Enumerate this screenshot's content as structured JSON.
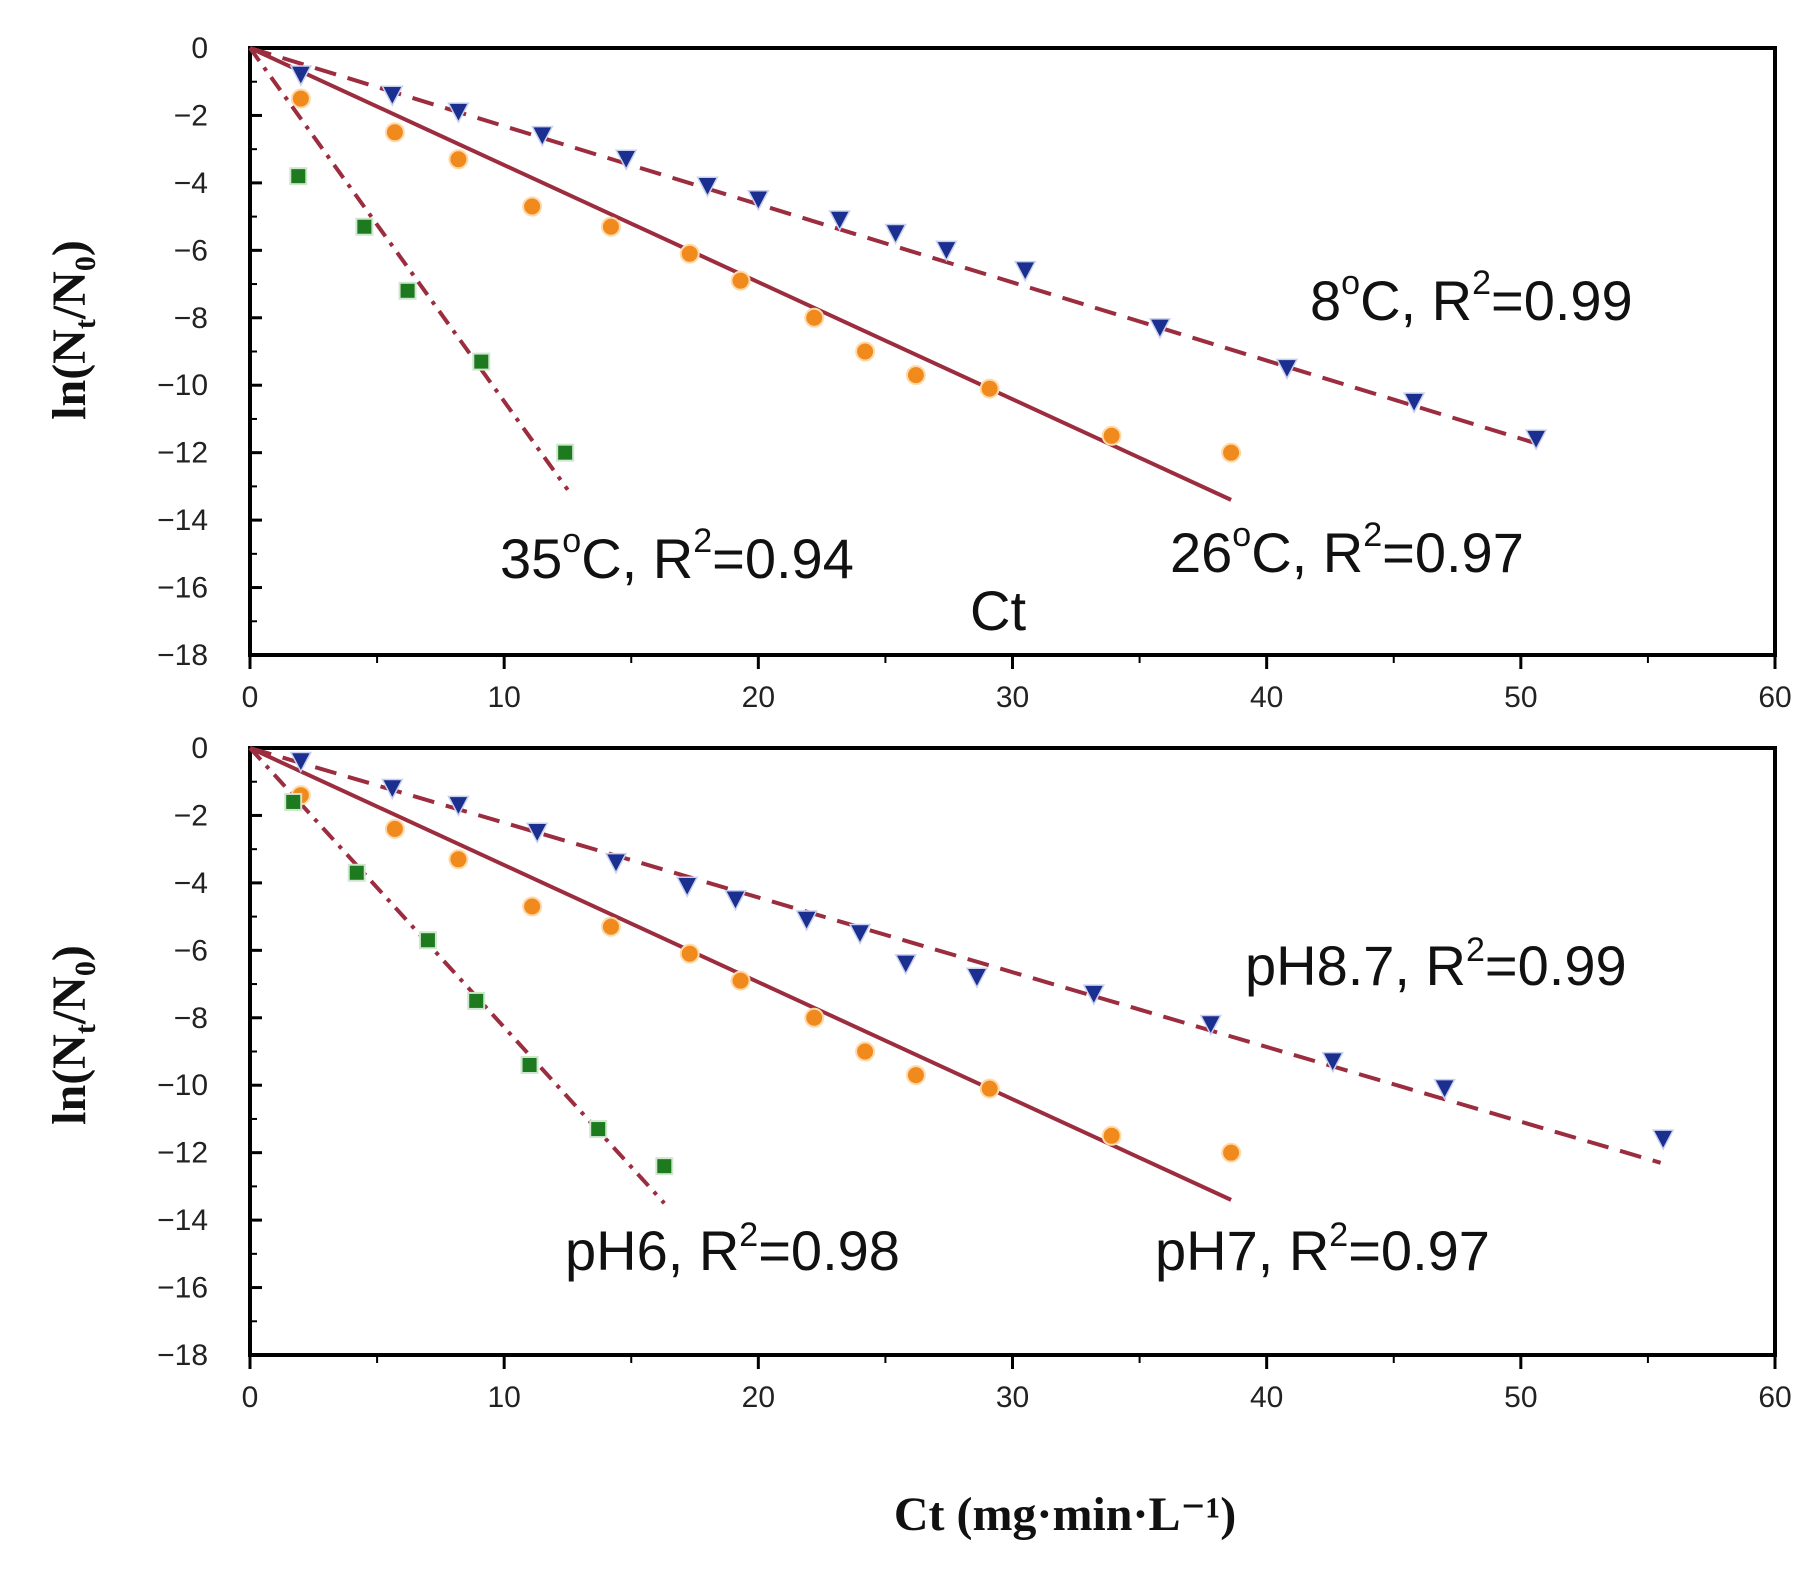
{
  "figure": {
    "ylabel_main": "ln(N",
    "ylabel_sub_t": "t",
    "ylabel_mid": "/N",
    "ylabel_sub_0": "0",
    "ylabel_close": ")",
    "xlabel": "Ct (mg·min·L⁻¹)",
    "stray_label": "Ct"
  },
  "colors": {
    "axis": "#000000",
    "line": "#9b2d3f",
    "triangle": "#1a2f8f",
    "circle": "#f08a1c",
    "square": "#1e7a1e"
  },
  "chart_data": [
    {
      "type": "scatter",
      "panel": "top",
      "xlim": [
        0,
        60
      ],
      "ylim": [
        -18,
        0
      ],
      "xticks": [
        0,
        10,
        20,
        30,
        40,
        50,
        60
      ],
      "yticks": [
        0,
        -2,
        -4,
        -6,
        -8,
        -10,
        -12,
        -14,
        -16,
        -18
      ],
      "series": [
        {
          "name": "8°C",
          "marker": "triangle",
          "fit_style": "dashed",
          "fit": [
            [
              0,
              0
            ],
            [
              50.5,
              -11.7
            ]
          ],
          "x": [
            2,
            5.6,
            8.2,
            11.5,
            14.8,
            18,
            20,
            23.2,
            25.4,
            27.4,
            30.5,
            35.8,
            40.8,
            45.8,
            50.6
          ],
          "y": [
            -0.8,
            -1.4,
            -1.9,
            -2.6,
            -3.3,
            -4.1,
            -4.5,
            -5.1,
            -5.5,
            -6.0,
            -6.6,
            -8.3,
            -9.5,
            -10.5,
            -11.6
          ]
        },
        {
          "name": "26°C",
          "marker": "circle",
          "fit_style": "solid",
          "fit": [
            [
              0,
              0
            ],
            [
              38.6,
              -13.4
            ]
          ],
          "x": [
            2,
            5.7,
            8.2,
            11.1,
            14.2,
            17.3,
            19.3,
            22.2,
            24.2,
            26.2,
            29.1,
            33.9,
            38.6
          ],
          "y": [
            -1.5,
            -2.5,
            -3.3,
            -4.7,
            -5.3,
            -6.1,
            -6.9,
            -8.0,
            -9.0,
            -9.7,
            -10.1,
            -11.5,
            -12.0
          ]
        },
        {
          "name": "35°C",
          "marker": "square",
          "fit_style": "dashdot",
          "fit": [
            [
              0,
              0
            ],
            [
              12.5,
              -13.1
            ]
          ],
          "x": [
            1.9,
            4.5,
            6.2,
            9.1,
            12.4
          ],
          "y": [
            -3.8,
            -5.3,
            -7.2,
            -9.3,
            -12.0
          ]
        }
      ],
      "annotations": [
        {
          "name": "8-degree-label",
          "pre": "8",
          "deg": "o",
          "mid": "C, R",
          "sup": "2",
          "post": "=0.99"
        },
        {
          "name": "26-degree-label",
          "pre": "26",
          "deg": "o",
          "mid": "C, R",
          "sup": "2",
          "post": "=0.97"
        },
        {
          "name": "35-degree-label",
          "pre": "35",
          "deg": "o",
          "mid": "C, R",
          "sup": "2",
          "post": "=0.94"
        }
      ]
    },
    {
      "type": "scatter",
      "panel": "bottom",
      "xlim": [
        0,
        60
      ],
      "ylim": [
        -18,
        0
      ],
      "xticks": [
        0,
        10,
        20,
        30,
        40,
        50,
        60
      ],
      "yticks": [
        0,
        -2,
        -4,
        -6,
        -8,
        -10,
        -12,
        -14,
        -16,
        -18
      ],
      "series": [
        {
          "name": "pH8.7",
          "marker": "triangle",
          "fit_style": "dashed",
          "fit": [
            [
              0,
              0
            ],
            [
              55.5,
              -12.3
            ]
          ],
          "x": [
            2,
            5.6,
            8.2,
            11.3,
            14.4,
            17.2,
            19.1,
            21.9,
            24,
            25.8,
            28.6,
            33.2,
            37.8,
            42.6,
            47,
            55.6
          ],
          "y": [
            -0.4,
            -1.2,
            -1.7,
            -2.5,
            -3.4,
            -4.1,
            -4.5,
            -5.1,
            -5.5,
            -6.4,
            -6.8,
            -7.3,
            -8.2,
            -9.3,
            -10.1,
            -11.6
          ]
        },
        {
          "name": "pH7",
          "marker": "circle",
          "fit_style": "solid",
          "fit": [
            [
              0,
              0
            ],
            [
              38.6,
              -13.4
            ]
          ],
          "x": [
            2,
            5.7,
            8.2,
            11.1,
            14.2,
            17.3,
            19.3,
            22.2,
            24.2,
            26.2,
            29.1,
            33.9,
            38.6
          ],
          "y": [
            -1.4,
            -2.4,
            -3.3,
            -4.7,
            -5.3,
            -6.1,
            -6.9,
            -8.0,
            -9.0,
            -9.7,
            -10.1,
            -11.5,
            -12.0
          ]
        },
        {
          "name": "pH6",
          "marker": "square",
          "fit_style": "dashdot",
          "fit": [
            [
              0,
              0
            ],
            [
              16.3,
              -13.5
            ]
          ],
          "x": [
            1.7,
            4.2,
            7,
            8.9,
            11,
            13.7,
            16.3
          ],
          "y": [
            -1.6,
            -3.7,
            -5.7,
            -7.5,
            -9.4,
            -11.3,
            -12.4
          ]
        }
      ],
      "annotations": [
        {
          "name": "ph87-label",
          "pre": "pH8.7, R",
          "deg": "",
          "mid": "",
          "sup": "2",
          "post": "=0.99"
        },
        {
          "name": "ph7-label",
          "pre": "pH7, R",
          "deg": "",
          "mid": "",
          "sup": "2",
          "post": "=0.97"
        },
        {
          "name": "ph6-label",
          "pre": "pH6, R",
          "deg": "",
          "mid": "",
          "sup": "2",
          "post": "=0.98"
        }
      ]
    }
  ]
}
